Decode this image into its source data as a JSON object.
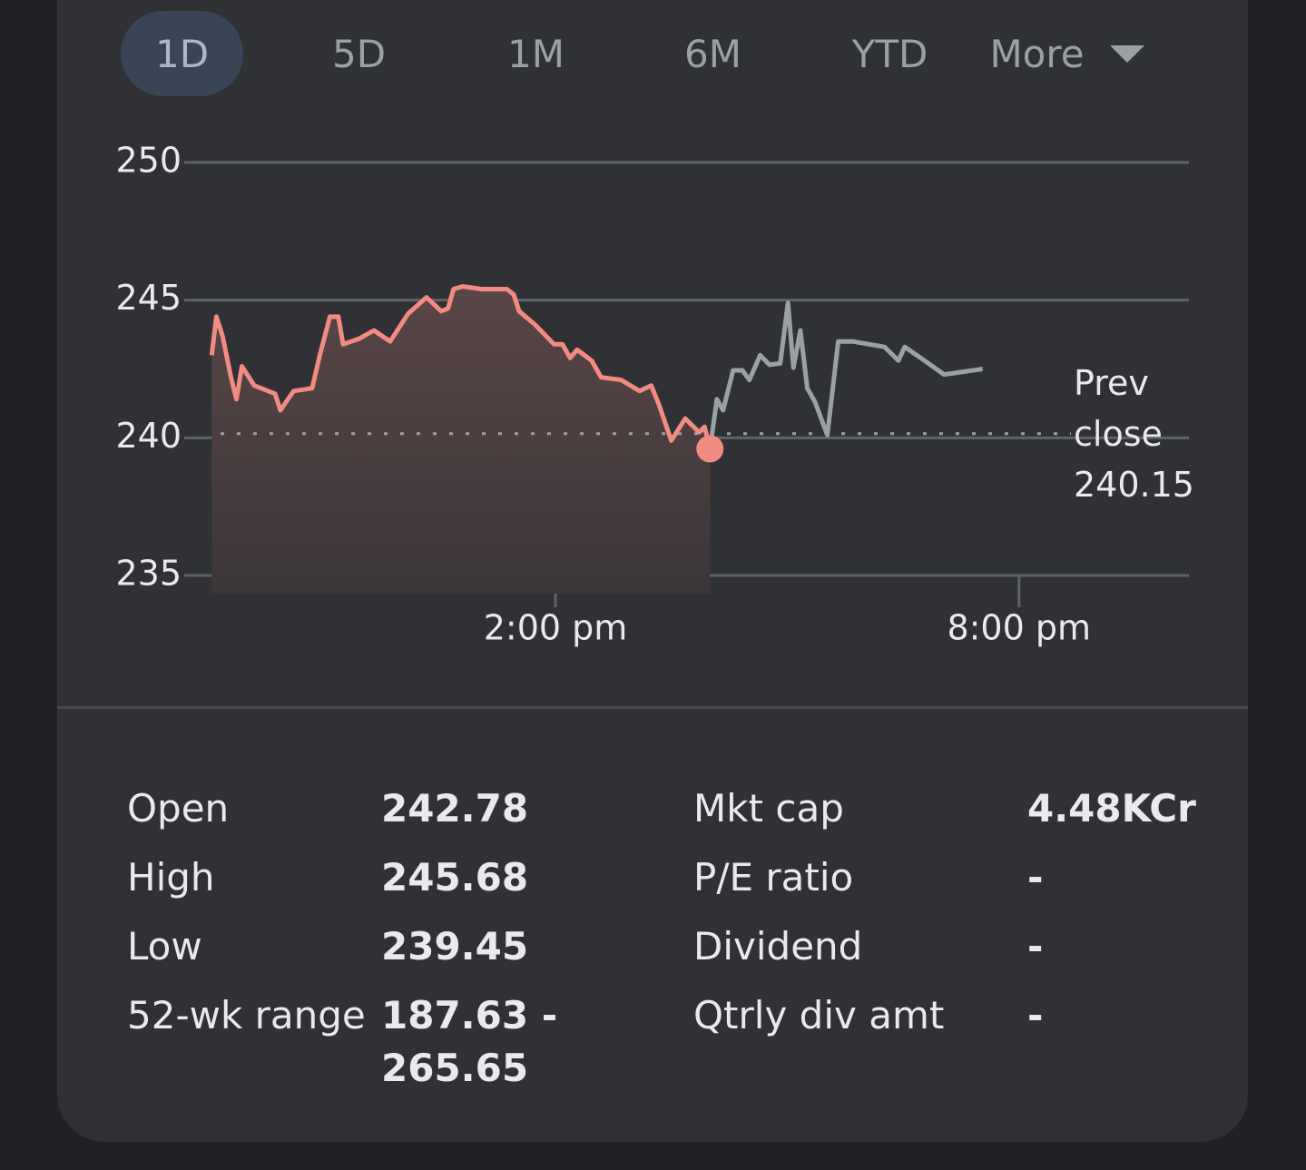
{
  "tabs": [
    "1D",
    "5D",
    "1M",
    "6M",
    "YTD",
    "More"
  ],
  "chart_data": {
    "type": "line",
    "x": [
      9.55,
      9.61,
      9.69,
      9.8,
      9.87,
      9.94,
      10.1,
      10.37,
      10.44,
      10.61,
      10.85,
      10.95,
      11.08,
      11.19,
      11.25,
      11.46,
      11.65,
      11.86,
      12.09,
      12.33,
      12.52,
      12.61,
      12.68,
      12.8,
      13.04,
      13.37,
      13.46,
      13.53,
      13.74,
      13.98,
      14.09,
      14.19,
      14.28,
      14.47,
      14.59,
      14.85,
      15.09,
      15.24,
      15.34,
      15.5,
      15.68,
      15.86,
      15.93,
      16.0,
      16.09,
      16.17,
      16.3,
      16.42,
      16.51,
      16.65,
      16.77,
      16.91,
      17.01,
      17.08,
      17.17,
      17.26,
      17.36,
      17.52,
      17.66,
      17.85,
      18.26,
      18.44,
      18.52,
      18.73,
      19.03,
      19.53
    ],
    "series": [
      {
        "color": "#f28b82",
        "fill": true,
        "values": [
          243.0,
          244.4,
          243.7,
          242.2,
          241.4,
          242.6,
          241.9,
          241.6,
          241.0,
          241.7,
          241.8,
          243.0,
          244.4,
          244.4,
          243.4,
          243.6,
          243.9,
          243.5,
          244.5,
          245.1,
          244.6,
          244.7,
          245.4,
          245.5,
          245.4,
          245.4,
          245.2,
          244.6,
          244.1,
          243.4,
          243.4,
          242.9,
          243.2,
          242.8,
          242.2,
          242.1,
          241.7,
          241.9,
          241.2,
          239.9,
          240.7,
          240.2,
          240.4,
          239.6,
          null,
          null,
          null,
          null,
          null,
          null,
          null,
          null,
          null,
          null,
          null,
          null,
          null,
          null,
          null,
          null,
          null,
          null,
          null,
          null,
          null,
          null
        ]
      },
      {
        "color": "#9aa0a6",
        "fill": false,
        "values": [
          null,
          null,
          null,
          null,
          null,
          null,
          null,
          null,
          null,
          null,
          null,
          null,
          null,
          null,
          null,
          null,
          null,
          null,
          null,
          null,
          null,
          null,
          null,
          null,
          null,
          null,
          null,
          null,
          null,
          null,
          null,
          null,
          null,
          null,
          null,
          null,
          null,
          null,
          null,
          null,
          null,
          null,
          null,
          239.6,
          241.4,
          241.0,
          242.45,
          242.45,
          242.1,
          243.0,
          242.65,
          242.7,
          244.9,
          242.55,
          243.9,
          241.8,
          241.3,
          240.1,
          243.5,
          243.5,
          243.3,
          242.8,
          243.3,
          242.9,
          242.3,
          242.5
        ]
      }
    ],
    "xlim": [
      9.5,
      22.2
    ],
    "ylim": [
      235,
      250
    ],
    "yticks": [
      235,
      240,
      245,
      250
    ],
    "xticks": [
      {
        "value": 14,
        "label": "2:00 pm"
      },
      {
        "value": 20,
        "label": "8:00 pm"
      }
    ],
    "grid": true,
    "prev_close": {
      "label": "Prev close",
      "value": 240.15
    }
  },
  "stats": {
    "left": [
      [
        "Open",
        "242.78"
      ],
      [
        "High",
        "245.68"
      ],
      [
        "Low",
        "239.45"
      ],
      [
        "52-wk range",
        "187.63 - 265.65"
      ]
    ],
    "right": [
      [
        "Mkt cap",
        "4.48KCr"
      ],
      [
        "P/E ratio",
        "-"
      ],
      [
        "Dividend",
        "-"
      ],
      [
        "Qtrly div amt",
        "-"
      ]
    ]
  }
}
